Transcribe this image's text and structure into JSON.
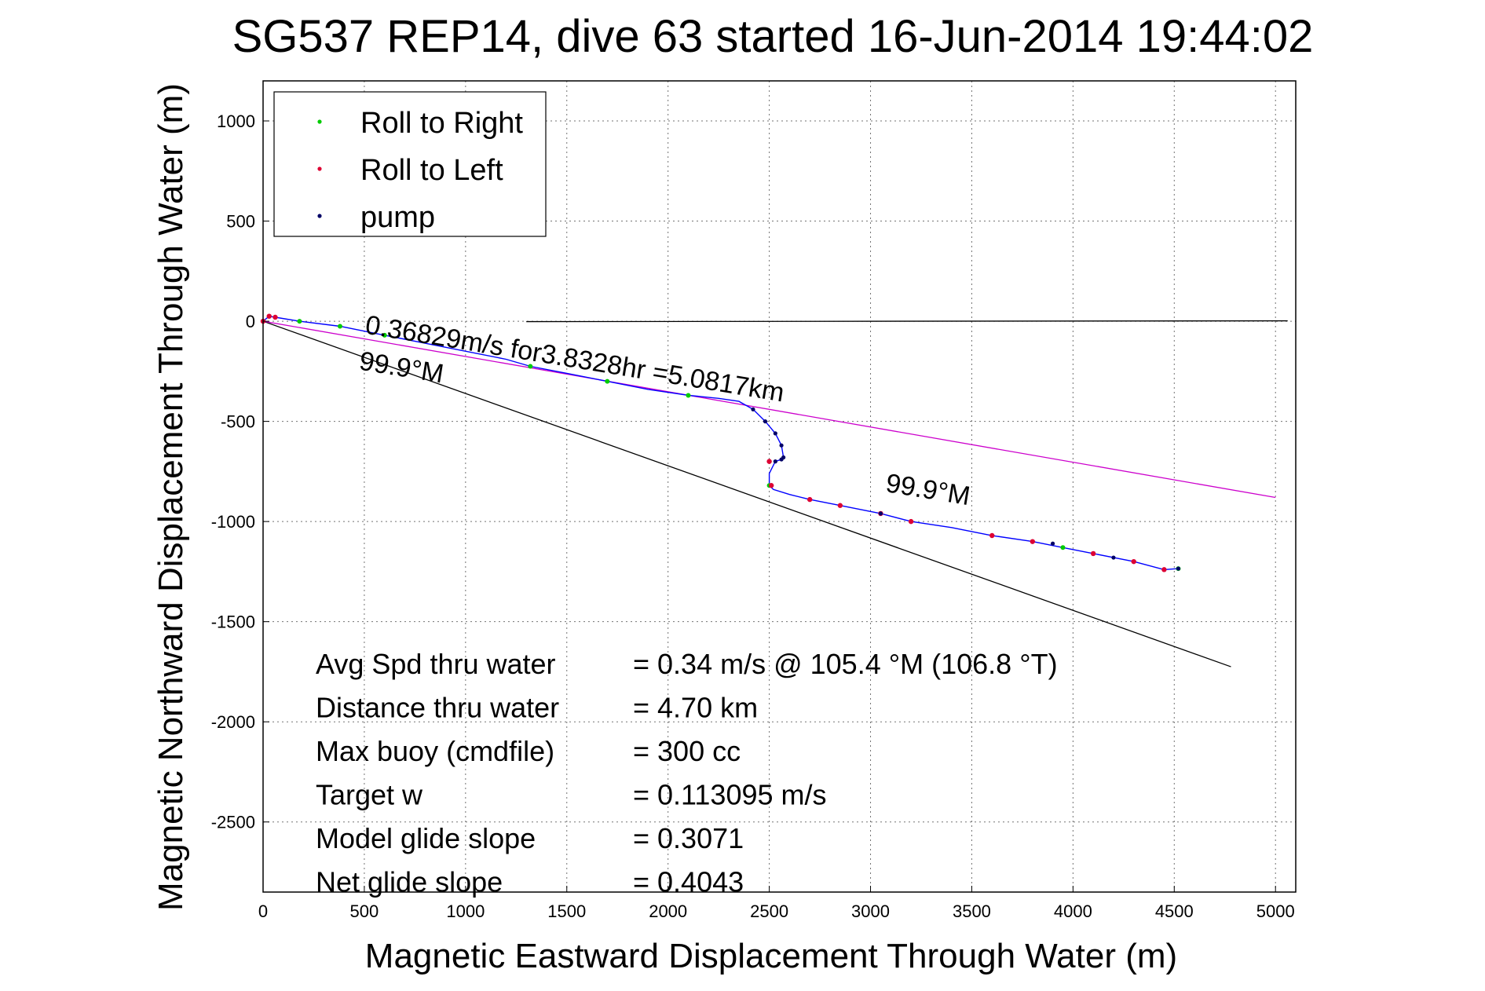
{
  "chart_data": {
    "type": "line",
    "title": "SG537 REP14, dive 63 started 16-Jun-2014 19:44:02",
    "xlabel": "Magnetic Eastward Displacement Through Water (m)",
    "ylabel": "Magnetic Northward Displacement Through Water (m)",
    "xlim": [
      0,
      5100
    ],
    "ylim": [
      -2850,
      1200
    ],
    "xticks": [
      0,
      500,
      1000,
      1500,
      2000,
      2500,
      3000,
      3500,
      4000,
      4500,
      5000
    ],
    "yticks": [
      1000,
      500,
      0,
      -500,
      -1000,
      -1500,
      -2000,
      -2500
    ],
    "grid": true,
    "legend_position": "top-left",
    "legend": [
      {
        "label": "Roll to Right",
        "color": "#00cc00"
      },
      {
        "label": "Roll to Left",
        "color": "#dd0033"
      },
      {
        "label": "pump",
        "color": "#000066"
      }
    ],
    "track": {
      "color": "#0000ff",
      "x": [
        0,
        30,
        60,
        180,
        380,
        600,
        900,
        1200,
        1320,
        1500,
        1700,
        1900,
        2100,
        2250,
        2350,
        2420,
        2480,
        2530,
        2560,
        2570,
        2560,
        2530,
        2500,
        2500,
        2520,
        2600,
        2700,
        2850,
        3050,
        3200,
        3400,
        3600,
        3800,
        3950,
        4100,
        4300,
        4450,
        4520
      ],
      "y": [
        0,
        25,
        20,
        0,
        -25,
        -70,
        -130,
        -190,
        -225,
        -260,
        -300,
        -340,
        -370,
        -385,
        -400,
        -440,
        -500,
        -560,
        -620,
        -680,
        -690,
        -700,
        -760,
        -820,
        -840,
        -865,
        -890,
        -920,
        -960,
        -1000,
        -1030,
        -1070,
        -1100,
        -1130,
        -1160,
        -1200,
        -1240,
        -1235
      ]
    },
    "roll_right_points": {
      "x": [
        180,
        380,
        600,
        1320,
        1700,
        2100,
        2500,
        3950,
        4520
      ],
      "y": [
        0,
        -25,
        -70,
        -225,
        -300,
        -370,
        -820,
        -1130,
        -1235
      ]
    },
    "roll_left_points": {
      "x": [
        0,
        30,
        60,
        2500,
        2510,
        2700,
        2850,
        3050,
        3200,
        3600,
        3800,
        4100,
        4300,
        4450
      ],
      "y": [
        0,
        25,
        20,
        -700,
        -820,
        -890,
        -920,
        -960,
        -1000,
        -1070,
        -1100,
        -1160,
        -1200,
        -1240
      ]
    },
    "pump_points": {
      "x": [
        2420,
        2480,
        2530,
        2560,
        2570,
        2560,
        2530,
        3050,
        3900,
        4200,
        4520
      ],
      "y": [
        -440,
        -500,
        -560,
        -620,
        -680,
        -690,
        -700,
        -960,
        -1110,
        -1180,
        -1235
      ]
    },
    "reference_lines": [
      {
        "color": "#000000",
        "x": [
          0,
          4780
        ],
        "y": [
          0,
          -1725
        ]
      },
      {
        "color": "#cc00cc",
        "x": [
          0,
          5000
        ],
        "y": [
          0,
          -880
        ]
      },
      {
        "color": "#000000",
        "x": [
          1300,
          5060
        ],
        "y": [
          -2,
          2
        ]
      }
    ],
    "annotations": [
      {
        "text": "0.36829m/s for3.8328hr =5.0817km",
        "x": 500,
        "y": -60,
        "rotation": 9.3
      },
      {
        "text": "99.9°M",
        "x": 470,
        "y": -240,
        "rotation": 9.3
      },
      {
        "text": "99.9°M",
        "x": 3070,
        "y": -850,
        "rotation": 9.3
      }
    ],
    "stats": [
      {
        "label": "Avg Spd thru water",
        "value": "=  0.34 m/s @ 105.4 °M (106.8 °T)"
      },
      {
        "label": "Distance thru water",
        "value": "=  4.70 km"
      },
      {
        "label": "Max buoy (cmdfile)",
        "value": "= 300 cc"
      },
      {
        "label": "Target w",
        "value": "= 0.113095 m/s"
      },
      {
        "label": "Model glide slope",
        "value": "= 0.3071"
      },
      {
        "label": "Net glide slope",
        "value": "= 0.4043"
      }
    ]
  }
}
